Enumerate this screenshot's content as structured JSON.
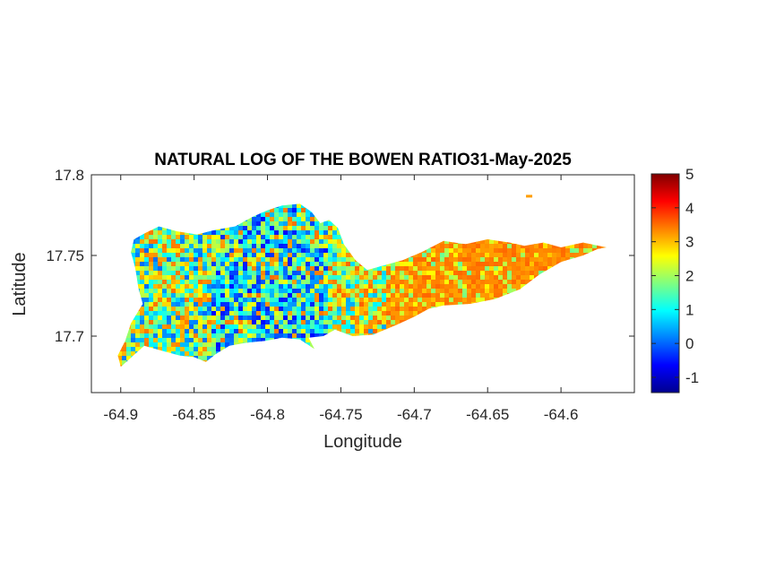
{
  "chart_data": {
    "type": "heatmap",
    "title": "NATURAL LOG OF THE BOWEN RATIO31-May-2025",
    "xlabel": "Longitude",
    "ylabel": "Latitude",
    "xlim": [
      -64.92,
      -64.55
    ],
    "ylim": [
      17.665,
      17.8
    ],
    "xticks": [
      -64.9,
      -64.85,
      -64.8,
      -64.75,
      -64.7,
      -64.65,
      -64.6
    ],
    "xtick_labels": [
      "-64.9",
      "-64.85",
      "-64.8",
      "-64.75",
      "-64.7",
      "-64.65",
      "-64.6"
    ],
    "yticks": [
      17.7,
      17.75,
      17.8
    ],
    "ytick_labels": [
      "17.7",
      "17.75",
      "17.8"
    ],
    "colormap": "jet",
    "colorbar": {
      "limits": [
        -1.45,
        5
      ],
      "ticks": [
        -1,
        0,
        1,
        2,
        3,
        4,
        5
      ],
      "tick_labels": [
        "-1",
        "0",
        "1",
        "2",
        "3",
        "4",
        "5"
      ]
    },
    "grid": false,
    "region_outline": [
      [
        -64.9,
        17.681
      ],
      [
        -64.895,
        17.685
      ],
      [
        -64.889,
        17.69
      ],
      [
        -64.884,
        17.694
      ],
      [
        -64.872,
        17.691
      ],
      [
        -64.86,
        17.688
      ],
      [
        -64.85,
        17.687
      ],
      [
        -64.842,
        17.684
      ],
      [
        -64.835,
        17.689
      ],
      [
        -64.826,
        17.694
      ],
      [
        -64.814,
        17.696
      ],
      [
        -64.802,
        17.697
      ],
      [
        -64.79,
        17.699
      ],
      [
        -64.778,
        17.698
      ],
      [
        -64.768,
        17.692
      ],
      [
        -64.772,
        17.699
      ],
      [
        -64.762,
        17.7
      ],
      [
        -64.754,
        17.704
      ],
      [
        -64.742,
        17.7
      ],
      [
        -64.728,
        17.701
      ],
      [
        -64.712,
        17.707
      ],
      [
        -64.7,
        17.712
      ],
      [
        -64.69,
        17.717
      ],
      [
        -64.68,
        17.719
      ],
      [
        -64.662,
        17.72
      ],
      [
        -64.645,
        17.723
      ],
      [
        -64.628,
        17.729
      ],
      [
        -64.615,
        17.738
      ],
      [
        -64.6,
        17.746
      ],
      [
        -64.585,
        17.75
      ],
      [
        -64.575,
        17.754
      ],
      [
        -64.569,
        17.755
      ],
      [
        -64.585,
        17.758
      ],
      [
        -64.6,
        17.755
      ],
      [
        -64.612,
        17.758
      ],
      [
        -64.625,
        17.756
      ],
      [
        -64.635,
        17.758
      ],
      [
        -64.65,
        17.76
      ],
      [
        -64.665,
        17.757
      ],
      [
        -64.68,
        17.759
      ],
      [
        -64.695,
        17.752
      ],
      [
        -64.708,
        17.747
      ],
      [
        -64.72,
        17.744
      ],
      [
        -64.732,
        17.741
      ],
      [
        -64.74,
        17.747
      ],
      [
        -64.748,
        17.757
      ],
      [
        -64.752,
        17.767
      ],
      [
        -64.758,
        17.772
      ],
      [
        -64.764,
        17.77
      ],
      [
        -64.77,
        17.777
      ],
      [
        -64.778,
        17.782
      ],
      [
        -64.79,
        17.781
      ],
      [
        -64.8,
        17.778
      ],
      [
        -64.81,
        17.774
      ],
      [
        -64.822,
        17.768
      ],
      [
        -64.835,
        17.766
      ],
      [
        -64.848,
        17.763
      ],
      [
        -64.862,
        17.765
      ],
      [
        -64.874,
        17.768
      ],
      [
        -64.883,
        17.764
      ],
      [
        -64.891,
        17.76
      ],
      [
        -64.893,
        17.752
      ],
      [
        -64.89,
        17.742
      ],
      [
        -64.888,
        17.73
      ],
      [
        -64.885,
        17.72
      ],
      [
        -64.893,
        17.708
      ],
      [
        -64.897,
        17.697
      ],
      [
        -64.902,
        17.688
      ]
    ],
    "islet": [
      -64.622,
      17.787
    ],
    "value_zones": [
      {
        "lon_range": [
          -64.9,
          -64.84
        ],
        "typical_value": 1.6
      },
      {
        "lon_range": [
          -64.84,
          -64.76
        ],
        "typical_value": 1.0
      },
      {
        "lon_range": [
          -64.76,
          -64.72
        ],
        "typical_value": 2.0
      },
      {
        "lon_range": [
          -64.72,
          -64.57
        ],
        "typical_value": 3.2
      }
    ]
  }
}
